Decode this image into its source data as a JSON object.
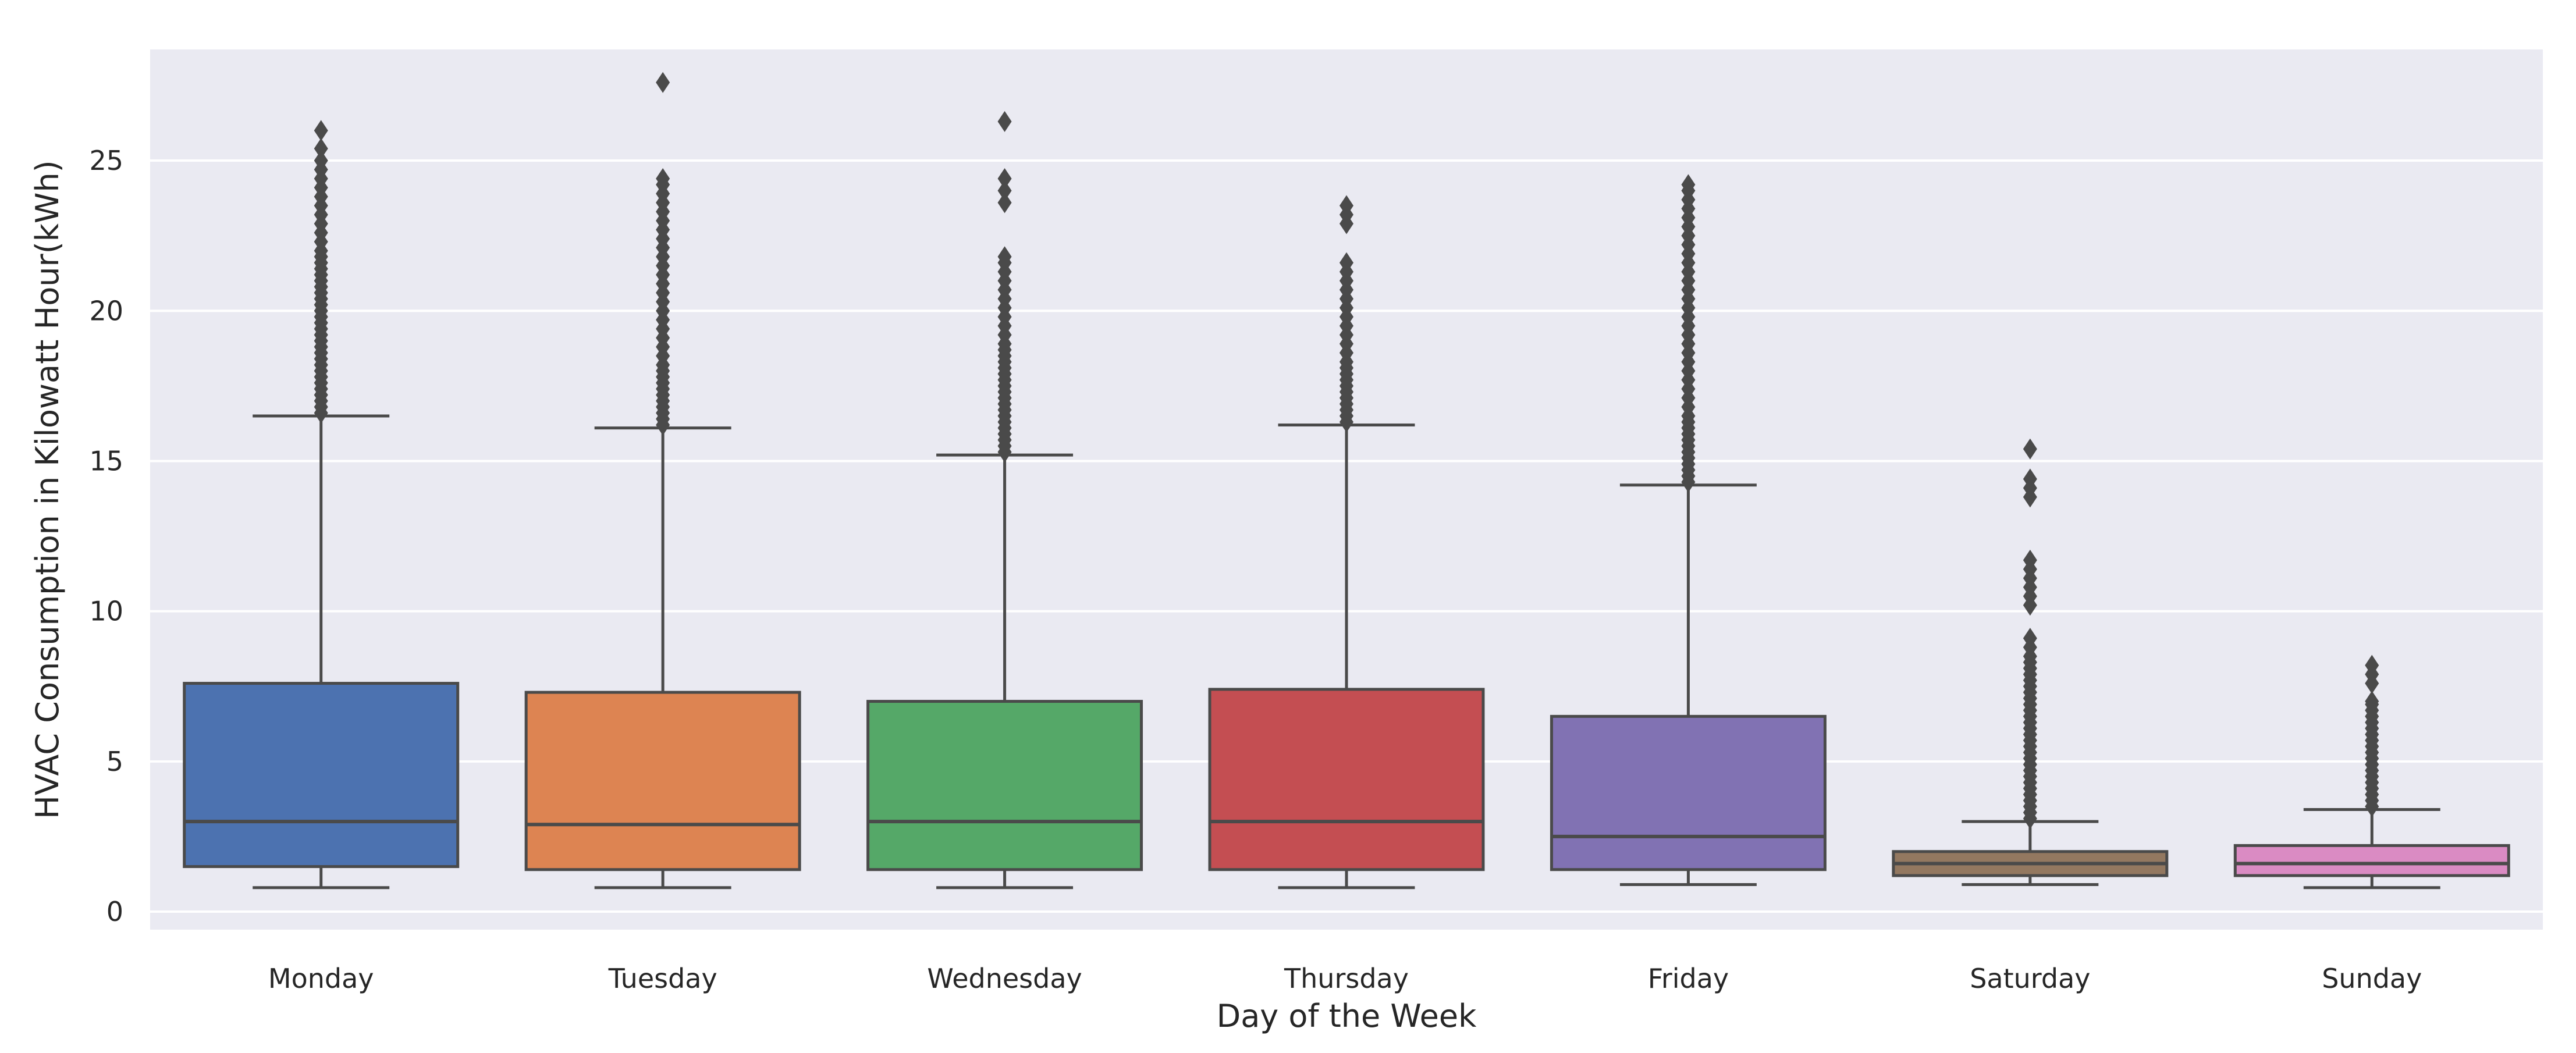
{
  "chart_data": {
    "type": "box",
    "title": "",
    "xlabel": "Day of the Week",
    "ylabel": "HVAC Consumption in Kilowatt Hour(kWh)",
    "ylim": [
      -0.6,
      28.7
    ],
    "yticks": [
      0,
      5,
      10,
      15,
      20,
      25
    ],
    "grid": true,
    "background": "#eaeaf2",
    "box_edge_color": "#4a4a4a",
    "categories": [
      "Monday",
      "Tuesday",
      "Wednesday",
      "Thursday",
      "Friday",
      "Saturday",
      "Sunday"
    ],
    "series": [
      {
        "category": "Monday",
        "color": "#4c72b0",
        "whisker_low": 0.8,
        "q1": 1.5,
        "median": 3.0,
        "q3": 7.6,
        "whisker_high": 16.5,
        "outliers": [
          16.6,
          16.8,
          17.0,
          17.2,
          17.4,
          17.6,
          17.8,
          18.0,
          18.2,
          18.4,
          18.6,
          18.8,
          19.0,
          19.2,
          19.4,
          19.6,
          19.8,
          20.0,
          20.2,
          20.4,
          20.6,
          20.8,
          21.0,
          21.2,
          21.4,
          21.6,
          21.8,
          22.0,
          22.3,
          22.6,
          22.9,
          23.2,
          23.5,
          23.8,
          24.1,
          24.4,
          24.7,
          25.0,
          25.4,
          26.0
        ]
      },
      {
        "category": "Tuesday",
        "color": "#dd8452",
        "whisker_low": 0.8,
        "q1": 1.4,
        "median": 2.9,
        "q3": 7.3,
        "whisker_high": 16.1,
        "outliers": [
          16.2,
          16.4,
          16.6,
          16.8,
          17.0,
          17.2,
          17.4,
          17.6,
          17.8,
          18.0,
          18.2,
          18.5,
          18.8,
          19.1,
          19.4,
          19.7,
          20.0,
          20.3,
          20.6,
          20.9,
          21.2,
          21.5,
          21.8,
          22.1,
          22.4,
          22.7,
          23.0,
          23.3,
          23.6,
          23.9,
          24.2,
          24.4,
          27.6
        ]
      },
      {
        "category": "Wednesday",
        "color": "#55a868",
        "whisker_low": 0.8,
        "q1": 1.4,
        "median": 3.0,
        "q3": 7.0,
        "whisker_high": 15.2,
        "outliers": [
          15.3,
          15.5,
          15.7,
          15.9,
          16.1,
          16.3,
          16.5,
          16.7,
          16.9,
          17.1,
          17.3,
          17.5,
          17.7,
          17.9,
          18.1,
          18.3,
          18.5,
          18.7,
          18.9,
          19.2,
          19.5,
          19.8,
          20.1,
          20.4,
          20.7,
          21.0,
          21.3,
          21.6,
          21.8,
          23.6,
          24.0,
          24.4,
          26.3
        ]
      },
      {
        "category": "Thursday",
        "color": "#c44e52",
        "whisker_low": 0.8,
        "q1": 1.4,
        "median": 3.0,
        "q3": 7.4,
        "whisker_high": 16.2,
        "outliers": [
          16.3,
          16.5,
          16.7,
          16.9,
          17.1,
          17.3,
          17.5,
          17.7,
          17.9,
          18.1,
          18.3,
          18.6,
          18.9,
          19.2,
          19.5,
          19.8,
          20.1,
          20.4,
          20.7,
          21.0,
          21.3,
          21.6,
          22.9,
          23.2,
          23.5
        ]
      },
      {
        "category": "Friday",
        "color": "#8172b3",
        "whisker_low": 0.9,
        "q1": 1.4,
        "median": 2.5,
        "q3": 6.5,
        "whisker_high": 14.2,
        "outliers": [
          14.3,
          14.5,
          14.7,
          14.9,
          15.1,
          15.3,
          15.5,
          15.7,
          15.9,
          16.1,
          16.3,
          16.5,
          16.8,
          17.1,
          17.4,
          17.7,
          18.0,
          18.3,
          18.6,
          18.9,
          19.2,
          19.5,
          19.8,
          20.1,
          20.4,
          20.7,
          21.0,
          21.3,
          21.6,
          21.9,
          22.2,
          22.5,
          22.8,
          23.1,
          23.4,
          23.7,
          24.0,
          24.2
        ]
      },
      {
        "category": "Saturday",
        "color": "#937860",
        "whisker_low": 0.9,
        "q1": 1.2,
        "median": 1.6,
        "q3": 2.0,
        "whisker_high": 3.0,
        "outliers": [
          3.1,
          3.3,
          3.5,
          3.7,
          3.9,
          4.1,
          4.3,
          4.5,
          4.7,
          4.9,
          5.1,
          5.3,
          5.5,
          5.7,
          5.9,
          6.1,
          6.3,
          6.5,
          6.7,
          6.9,
          7.1,
          7.3,
          7.5,
          7.7,
          7.9,
          8.1,
          8.3,
          8.5,
          8.8,
          9.1,
          10.2,
          10.5,
          10.8,
          11.1,
          11.4,
          11.7,
          13.8,
          14.1,
          14.4,
          15.4
        ]
      },
      {
        "category": "Sunday",
        "color": "#da8bc3",
        "whisker_low": 0.8,
        "q1": 1.2,
        "median": 1.6,
        "q3": 2.2,
        "whisker_high": 3.4,
        "outliers": [
          3.5,
          3.7,
          3.9,
          4.1,
          4.3,
          4.5,
          4.7,
          4.9,
          5.1,
          5.3,
          5.5,
          5.7,
          5.9,
          6.1,
          6.3,
          6.5,
          6.7,
          6.9,
          7.0,
          7.6,
          7.9,
          8.2
        ]
      }
    ]
  }
}
